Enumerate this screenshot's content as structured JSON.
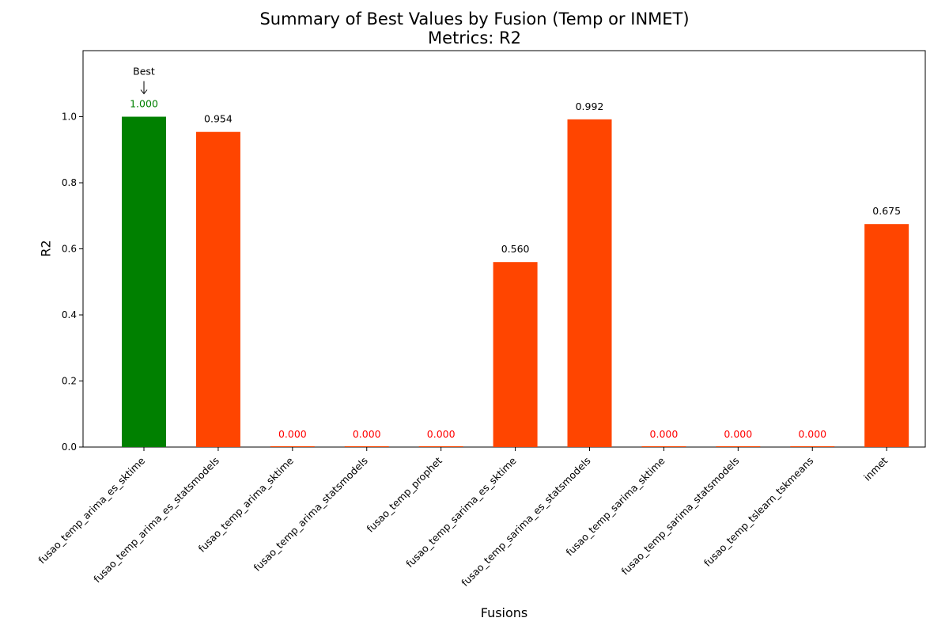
{
  "chart_data": {
    "type": "bar",
    "title": "Summary of Best Values by Fusion (Temp or INMET)",
    "subtitle": "Metrics: R2",
    "xlabel": "Fusions",
    "ylabel": "R2",
    "ylim": [
      0,
      1.2
    ],
    "yticks": [
      "0.0",
      "0.2",
      "0.4",
      "0.6",
      "0.8",
      "1.0"
    ],
    "categories": [
      "fusao_temp_arima_es_sktime",
      "fusao_temp_arima_es_statsmodels",
      "fusao_temp_arima_sktime",
      "fusao_temp_arima_statsmodels",
      "fusao_temp_prophet",
      "fusao_temp_sarima_es_sktime",
      "fusao_temp_sarima_es_statsmodels",
      "fusao_temp_sarima_sktime",
      "fusao_temp_sarima_statsmodels",
      "fusao_temp_tslearn_tskmeans",
      "inmet"
    ],
    "values": [
      1.0,
      0.954,
      0.0,
      0.0,
      0.0,
      0.56,
      0.992,
      0.0,
      0.0,
      0.0,
      0.675
    ],
    "value_labels": [
      "1.000",
      "0.954",
      "0.000",
      "0.000",
      "0.000",
      "0.560",
      "0.992",
      "0.000",
      "0.000",
      "0.000",
      "0.675"
    ],
    "best_index": 0,
    "best_annotation": "Best",
    "colors": {
      "best": "#008000",
      "normal": "#ff4500",
      "zero_label": "#ff0000",
      "label": "#000000"
    },
    "grid": false,
    "legend": "none"
  }
}
